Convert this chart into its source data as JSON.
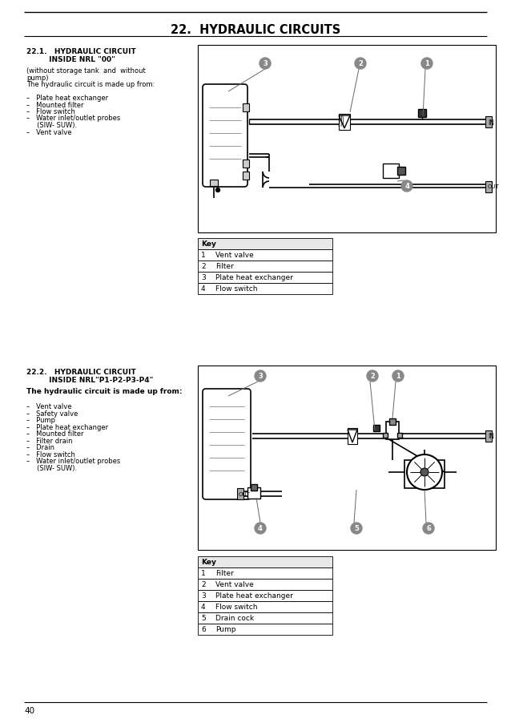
{
  "title": "22.  HYDRAULIC CIRCUITS",
  "bg_color": "#ffffff",
  "page_number": "40",
  "section1": {
    "heading1": "22.1.   HYDRAULIC CIRCUIT",
    "heading2": "         INSIDE NRL \"00\"",
    "body_lines": [
      "(without storage tank  and  without",
      "pump)",
      "The hydraulic circuit is made up from:",
      "",
      "–   Plate heat exchanger",
      "–   Mounted filter",
      "–   Flow switch",
      "–   Water inlet/outlet probes",
      "     (SIW- SUW).",
      "–   Vent valve"
    ],
    "key_rows": [
      [
        "Key",
        ""
      ],
      [
        "1",
        "Vent valve"
      ],
      [
        "2",
        "Filter"
      ],
      [
        "3",
        "Plate heat exchanger"
      ],
      [
        "4",
        "Flow switch"
      ]
    ]
  },
  "section2": {
    "heading1": "22.2.   HYDRAULIC CIRCUIT",
    "heading2": "         INSIDE NRL\"P1-P2-P3-P4\"",
    "body_bold": "The hydraulic circuit is made up from:",
    "body_lines": [
      "",
      "–   Vent valve",
      "–   Safety valve",
      "–   Pump",
      "–   Plate heat exchanger",
      "–   Mounted filter",
      "–   Filter drain",
      "–   Drain",
      "–   Flow switch",
      "–   Water inlet/outlet probes",
      "     (SIW- SUW)."
    ],
    "key_rows": [
      [
        "Key",
        ""
      ],
      [
        "1",
        "Filter"
      ],
      [
        "2",
        "Vent valve"
      ],
      [
        "3",
        "Plate heat exchanger"
      ],
      [
        "4",
        "Flow switch"
      ],
      [
        "5",
        "Drain cock"
      ],
      [
        "6",
        "Pump"
      ]
    ]
  }
}
